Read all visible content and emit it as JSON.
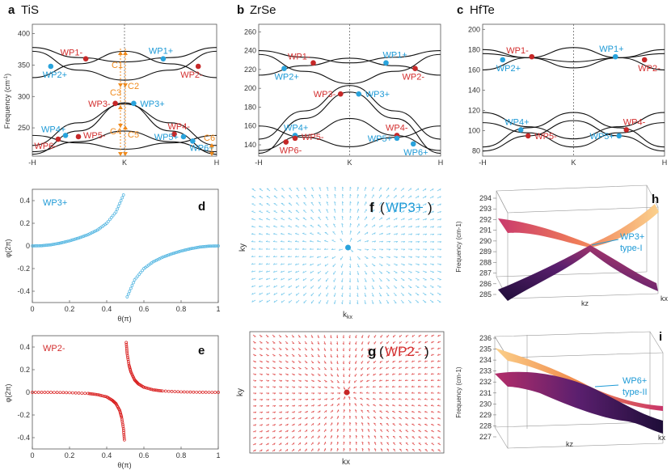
{
  "colors": {
    "wp_red": "#c62828",
    "wp_blue": "#29a3dc",
    "wp_label_red": "#d32f2f",
    "wp_label_blue": "#1e9ad6",
    "c_orange": "#f08a1c",
    "band_line": "#111111",
    "curve_blue": "#4db3e0",
    "curve_red": "#d81b1b",
    "field_blue": "#7ccbed",
    "field_red": "#e25555",
    "surf_top_a": "#fbd08a",
    "surf_top_b": "#c8356a",
    "surf_bot_a": "#e06a3a",
    "surf_bot_b": "#2a1248"
  },
  "panels": {
    "a": {
      "letter": "a",
      "material": "TiS"
    },
    "b": {
      "letter": "b",
      "material": "ZrSe"
    },
    "c": {
      "letter": "c",
      "material": "HfTe"
    },
    "d": {
      "letter": "d"
    },
    "e": {
      "letter": "e"
    },
    "f": {
      "letter": "f",
      "title_left": "(",
      "title_mid": "WP3+",
      "title_right": ")"
    },
    "g": {
      "letter": "g",
      "title_left": "(",
      "title_mid": "WP2-",
      "title_right": ")"
    },
    "h": {
      "letter": "h"
    },
    "i": {
      "letter": "i"
    }
  },
  "band_common": {
    "ylabel": "Frequency (cm",
    "ylabel_sup": "-1",
    "ylabel_end": ")",
    "xticks": [
      "-H",
      "K",
      "H"
    ]
  },
  "chart_data": [
    {
      "id": "a",
      "type": "line",
      "title": "TiS",
      "xlabel": "",
      "ylabel": "Frequency (cm-1)",
      "ylim": [
        205,
        415
      ],
      "yticks": [
        250,
        300,
        350,
        400
      ],
      "x_categories": [
        "-H",
        "K",
        "H"
      ],
      "series": [
        {
          "name": "band1",
          "x": [
            -1,
            -0.5,
            0,
            0.5,
            1
          ],
          "y": [
            212,
            228,
            245,
            228,
            212
          ]
        },
        {
          "name": "band2",
          "x": [
            -1,
            -0.5,
            0,
            0.5,
            1
          ],
          "y": [
            238,
            226,
            216,
            226,
            238
          ]
        },
        {
          "name": "band3",
          "x": [
            -1,
            -0.5,
            0,
            0.5,
            1
          ],
          "y": [
            208,
            245,
            290,
            245,
            208
          ]
        },
        {
          "name": "band4",
          "x": [
            -1,
            -0.5,
            0,
            0.5,
            1
          ],
          "y": [
            222,
            258,
            288,
            258,
            222
          ]
        },
        {
          "name": "band5",
          "x": [
            -1,
            -0.5,
            0,
            0.5,
            1
          ],
          "y": [
            372,
            342,
            326,
            342,
            372
          ]
        },
        {
          "name": "band6",
          "x": [
            -1,
            -0.5,
            0,
            0.5,
            1
          ],
          "y": [
            330,
            352,
            372,
            352,
            330
          ]
        },
        {
          "name": "band7",
          "x": [
            -1,
            -0.5,
            0,
            0.5,
            1
          ],
          "y": [
            378,
            362,
            355,
            362,
            378
          ]
        }
      ],
      "weyl_points": [
        {
          "label": "WP1-",
          "charge": "-",
          "x": -0.42,
          "y": 360
        },
        {
          "label": "WP1+",
          "charge": "+",
          "x": 0.42,
          "y": 360
        },
        {
          "label": "WP2+",
          "charge": "+",
          "x": -0.8,
          "y": 348
        },
        {
          "label": "WP2-",
          "charge": "-",
          "x": 0.8,
          "y": 348
        },
        {
          "label": "WP3-",
          "charge": "-",
          "x": -0.1,
          "y": 289
        },
        {
          "label": "WP3+",
          "charge": "+",
          "x": 0.1,
          "y": 289
        },
        {
          "label": "WP4+",
          "charge": "+",
          "x": -0.64,
          "y": 238
        },
        {
          "label": "WP4-",
          "charge": "-",
          "x": 0.54,
          "y": 240
        },
        {
          "label": "WP5-",
          "charge": "-",
          "x": -0.5,
          "y": 236
        },
        {
          "label": "WP5+",
          "charge": "+",
          "x": 0.64,
          "y": 236
        },
        {
          "label": "WP6-",
          "charge": "-",
          "x": -0.72,
          "y": 232
        },
        {
          "label": "WP6+",
          "charge": "+",
          "x": 0.74,
          "y": 229
        }
      ],
      "annotations": [
        "C1",
        "C2",
        "C3",
        "C4",
        "C5",
        "C6"
      ]
    },
    {
      "id": "b",
      "type": "line",
      "title": "ZrSe",
      "xlabel": "",
      "ylabel": "",
      "ylim": [
        128,
        268
      ],
      "yticks": [
        140,
        160,
        180,
        200,
        220,
        240,
        260
      ],
      "x_categories": [
        "-H",
        "K",
        "H"
      ],
      "series": [
        {
          "name": "band1",
          "x": [
            -1,
            -0.5,
            0,
            0.5,
            1
          ],
          "y": [
            134,
            150,
            168,
            150,
            134
          ]
        },
        {
          "name": "band2",
          "x": [
            -1,
            -0.5,
            0,
            0.5,
            1
          ],
          "y": [
            160,
            148,
            138,
            148,
            160
          ]
        },
        {
          "name": "band3",
          "x": [
            -1,
            -0.5,
            0,
            0.5,
            1
          ],
          "y": [
            131,
            168,
            196,
            168,
            131
          ]
        },
        {
          "name": "band4",
          "x": [
            -1,
            -0.5,
            0,
            0.5,
            1
          ],
          "y": [
            146,
            176,
            203,
            176,
            146
          ]
        },
        {
          "name": "band5",
          "x": [
            -1,
            -0.5,
            0,
            0.5,
            1
          ],
          "y": [
            236,
            218,
            205,
            218,
            236
          ]
        },
        {
          "name": "band6",
          "x": [
            -1,
            -0.5,
            0,
            0.5,
            1
          ],
          "y": [
            214,
            224,
            232,
            224,
            214
          ]
        },
        {
          "name": "band7",
          "x": [
            -1,
            -0.5,
            0,
            0.5,
            1
          ],
          "y": [
            240,
            233,
            227,
            233,
            240
          ]
        }
      ],
      "weyl_points": [
        {
          "label": "WP1-",
          "charge": "-",
          "x": -0.4,
          "y": 227
        },
        {
          "label": "WP1+",
          "charge": "+",
          "x": 0.4,
          "y": 227
        },
        {
          "label": "WP2+",
          "charge": "+",
          "x": -0.72,
          "y": 221
        },
        {
          "label": "WP2-",
          "charge": "-",
          "x": 0.72,
          "y": 221
        },
        {
          "label": "WP3-",
          "charge": "-",
          "x": -0.1,
          "y": 194
        },
        {
          "label": "WP3+",
          "charge": "+",
          "x": 0.1,
          "y": 194
        },
        {
          "label": "WP4+",
          "charge": "+",
          "x": -0.6,
          "y": 150
        },
        {
          "label": "WP4-",
          "charge": "-",
          "x": 0.52,
          "y": 150
        },
        {
          "label": "WP5-",
          "charge": "-",
          "x": -0.6,
          "y": 147
        },
        {
          "label": "WP5+",
          "charge": "+",
          "x": 0.52,
          "y": 147
        },
        {
          "label": "WP6-",
          "charge": "-",
          "x": -0.7,
          "y": 143
        },
        {
          "label": "WP6+",
          "charge": "+",
          "x": 0.7,
          "y": 141
        }
      ]
    },
    {
      "id": "c",
      "type": "line",
      "title": "HfTe",
      "xlabel": "",
      "ylabel": "",
      "ylim": [
        75,
        205
      ],
      "yticks": [
        80,
        100,
        120,
        140,
        160,
        180,
        200
      ],
      "x_categories": [
        "-H",
        "K",
        "H"
      ],
      "series": [
        {
          "name": "band1",
          "x": [
            -1,
            -0.5,
            0,
            0.5,
            1
          ],
          "y": [
            80,
            95,
            110,
            95,
            80
          ]
        },
        {
          "name": "band2",
          "x": [
            -1,
            -0.5,
            0,
            0.5,
            1
          ],
          "y": [
            108,
            98,
            84,
            98,
            108
          ]
        },
        {
          "name": "band3",
          "x": [
            -1,
            -0.5,
            0,
            0.5,
            1
          ],
          "y": [
            84,
            103,
            118,
            103,
            84
          ]
        },
        {
          "name": "band4",
          "x": [
            -1,
            -0.5,
            0,
            0.5,
            1
          ],
          "y": [
            118,
            104,
            92,
            104,
            118
          ]
        },
        {
          "name": "band5",
          "x": [
            -1,
            -0.5,
            0,
            0.5,
            1
          ],
          "y": [
            160,
            172,
            182,
            172,
            160
          ]
        },
        {
          "name": "band6",
          "x": [
            -1,
            -0.5,
            0,
            0.5,
            1
          ],
          "y": [
            180,
            172,
            162,
            172,
            180
          ]
        },
        {
          "name": "band7",
          "x": [
            -1,
            -0.5,
            0,
            0.5,
            1
          ],
          "y": [
            176,
            172,
            168,
            172,
            176
          ]
        }
      ],
      "weyl_points": [
        {
          "label": "WP1-",
          "charge": "-",
          "x": -0.46,
          "y": 173
        },
        {
          "label": "WP1+",
          "charge": "+",
          "x": 0.46,
          "y": 173
        },
        {
          "label": "WP2+",
          "charge": "+",
          "x": -0.78,
          "y": 170
        },
        {
          "label": "WP2-",
          "charge": "-",
          "x": 0.78,
          "y": 170
        },
        {
          "label": "WP4+",
          "charge": "+",
          "x": -0.58,
          "y": 101
        },
        {
          "label": "WP4-",
          "charge": "-",
          "x": 0.58,
          "y": 101
        },
        {
          "label": "WP5-",
          "charge": "-",
          "x": -0.5,
          "y": 95
        },
        {
          "label": "WP5+",
          "charge": "+",
          "x": 0.5,
          "y": 95
        }
      ]
    },
    {
      "id": "d",
      "type": "scatter",
      "series_label": "WP3+",
      "xlabel": "θ(π)",
      "ylabel": "φ(2π)",
      "xlim": [
        0,
        1
      ],
      "ylim": [
        -0.5,
        0.5
      ],
      "xticks": [
        0,
        0.2,
        0.4,
        0.6,
        0.8,
        1
      ],
      "yticks": [
        0.4,
        0.2,
        0,
        -0.2,
        -0.4
      ],
      "x": [
        0,
        0.05,
        0.1,
        0.15,
        0.2,
        0.25,
        0.3,
        0.35,
        0.4,
        0.45,
        0.49,
        0.51,
        0.55,
        0.6,
        0.65,
        0.7,
        0.75,
        0.8,
        0.85,
        0.9,
        0.95,
        1.0
      ],
      "y": [
        0,
        0.002,
        0.01,
        0.025,
        0.045,
        0.07,
        0.1,
        0.14,
        0.2,
        0.3,
        0.45,
        -0.45,
        -0.3,
        -0.2,
        -0.14,
        -0.1,
        -0.07,
        -0.045,
        -0.025,
        -0.01,
        -0.002,
        0
      ]
    },
    {
      "id": "e",
      "type": "scatter",
      "series_label": "WP2-",
      "xlabel": "θ(π)",
      "ylabel": "φ(2π)",
      "xlim": [
        0,
        1
      ],
      "ylim": [
        -0.5,
        0.5
      ],
      "xticks": [
        0,
        0.2,
        0.4,
        0.6,
        0.8,
        1
      ],
      "yticks": [
        0.4,
        0.2,
        0,
        -0.2,
        -0.4
      ],
      "x": [
        0,
        0.1,
        0.2,
        0.3,
        0.35,
        0.4,
        0.43,
        0.45,
        0.47,
        0.48,
        0.49,
        0.495,
        0.505,
        0.51,
        0.52,
        0.53,
        0.55,
        0.57,
        0.6,
        0.65,
        0.7,
        0.8,
        0.9,
        1.0
      ],
      "y": [
        0,
        0,
        -0.003,
        -0.01,
        -0.02,
        -0.04,
        -0.07,
        -0.1,
        -0.16,
        -0.22,
        -0.32,
        -0.42,
        0.44,
        0.34,
        0.24,
        0.18,
        0.11,
        0.075,
        0.045,
        0.022,
        0.012,
        0.004,
        0.001,
        0
      ]
    },
    {
      "id": "f",
      "type": "scatter",
      "description": "quiver",
      "xlabel": "kx",
      "ylabel": "ky",
      "charge": "+",
      "center": {
        "kx": 0,
        "ky": 0
      }
    },
    {
      "id": "g",
      "type": "scatter",
      "description": "quiver",
      "xlabel": "kx",
      "ylabel": "ky",
      "charge": "-",
      "center": {
        "kx": 0,
        "ky": 0
      }
    },
    {
      "id": "h",
      "type": "area",
      "description": "3D band surface",
      "zlabel": "Frequency (cm-1)",
      "zticks": [
        285,
        286,
        287,
        288,
        289,
        290,
        291,
        292,
        293,
        294
      ],
      "axis1": "kz",
      "axis2": "kx",
      "callout_1": "WP3+",
      "callout_2": "type-I"
    },
    {
      "id": "i",
      "type": "area",
      "description": "3D band surface",
      "zlabel": "Frequency (cm-1)",
      "zticks": [
        227,
        228,
        229,
        230,
        231,
        232,
        233,
        234,
        235,
        236
      ],
      "axis1": "kz",
      "axis2": "kx",
      "callout_1": "WP6+",
      "callout_2": "type-II"
    }
  ]
}
